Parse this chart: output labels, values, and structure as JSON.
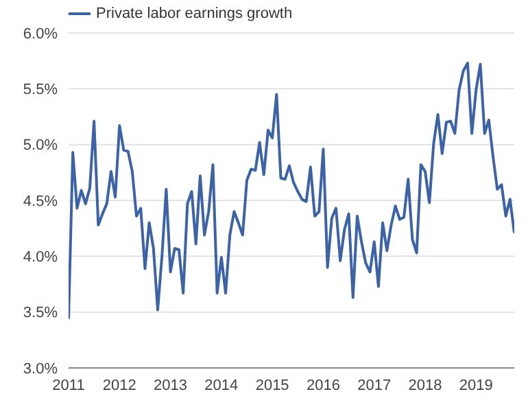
{
  "chart_data": {
    "type": "line",
    "legend": "top left",
    "grid": "y",
    "x": [
      "2011-01",
      "2011-02",
      "2011-03",
      "2011-04",
      "2011-05",
      "2011-06",
      "2011-07",
      "2011-08",
      "2011-09",
      "2011-10",
      "2011-11",
      "2011-12",
      "2012-01",
      "2012-02",
      "2012-03",
      "2012-04",
      "2012-05",
      "2012-06",
      "2012-07",
      "2012-08",
      "2012-09",
      "2012-10",
      "2012-11",
      "2012-12",
      "2013-01",
      "2013-02",
      "2013-03",
      "2013-04",
      "2013-05",
      "2013-06",
      "2013-07",
      "2013-08",
      "2013-09",
      "2013-10",
      "2013-11",
      "2013-12",
      "2014-01",
      "2014-02",
      "2014-03",
      "2014-04",
      "2014-05",
      "2014-06",
      "2014-07",
      "2014-08",
      "2014-09",
      "2014-10",
      "2014-11",
      "2014-12",
      "2015-01",
      "2015-02",
      "2015-03",
      "2015-04",
      "2015-05",
      "2015-06",
      "2015-07",
      "2015-08",
      "2015-09",
      "2015-10",
      "2015-11",
      "2015-12",
      "2016-01",
      "2016-02",
      "2016-03",
      "2016-04",
      "2016-05",
      "2016-06",
      "2016-07",
      "2016-08",
      "2016-09",
      "2016-10",
      "2016-11",
      "2016-12",
      "2017-01",
      "2017-02",
      "2017-03",
      "2017-04",
      "2017-05",
      "2017-06",
      "2017-07",
      "2017-08",
      "2017-09",
      "2017-10",
      "2017-11",
      "2017-12",
      "2018-01",
      "2018-02",
      "2018-03",
      "2018-04",
      "2018-05",
      "2018-06",
      "2018-07",
      "2018-08",
      "2018-09",
      "2018-10",
      "2018-11",
      "2018-12",
      "2019-01",
      "2019-02",
      "2019-03",
      "2019-04",
      "2019-05",
      "2019-06",
      "2019-07",
      "2019-08",
      "2019-09",
      "2019-10"
    ],
    "series": [
      {
        "name": "Private labor earnings growth",
        "color": "#3c63a8",
        "values": [
          3.44,
          4.93,
          4.43,
          4.59,
          4.47,
          4.61,
          5.21,
          4.28,
          4.38,
          4.47,
          4.76,
          4.53,
          5.17,
          4.95,
          4.94,
          4.76,
          4.36,
          4.43,
          3.89,
          4.3,
          4.07,
          3.52,
          4.0,
          4.6,
          3.86,
          4.07,
          4.06,
          3.67,
          4.47,
          4.58,
          4.11,
          4.72,
          4.19,
          4.4,
          4.82,
          3.67,
          3.99,
          3.67,
          4.19,
          4.4,
          4.3,
          4.19,
          4.68,
          4.78,
          4.77,
          5.02,
          4.73,
          5.13,
          5.06,
          5.45,
          4.7,
          4.69,
          4.81,
          4.66,
          4.58,
          4.51,
          4.49,
          4.8,
          4.36,
          4.4,
          4.96,
          3.9,
          4.34,
          4.43,
          3.96,
          4.24,
          4.38,
          3.63,
          4.36,
          4.13,
          3.94,
          3.86,
          4.13,
          3.73,
          4.3,
          4.05,
          4.28,
          4.45,
          4.33,
          4.35,
          4.69,
          4.15,
          4.03,
          4.82,
          4.76,
          4.48,
          5.01,
          5.27,
          4.92,
          5.2,
          5.21,
          5.1,
          5.49,
          5.66,
          5.73,
          5.1,
          5.49,
          5.72,
          5.1,
          5.22,
          4.89,
          4.6,
          4.64,
          4.36,
          4.51,
          4.21
        ]
      }
    ],
    "xlim": [
      "2011-01",
      "2019-10"
    ],
    "xticks": [
      "2011",
      "2012",
      "2013",
      "2014",
      "2015",
      "2016",
      "2017",
      "2018",
      "2019"
    ],
    "ylim": [
      3,
      6
    ],
    "yticks": [
      {
        "value": 3,
        "label": "3.0%"
      },
      {
        "value": 3.5,
        "label": "3.5%"
      },
      {
        "value": 4,
        "label": "4.0%"
      },
      {
        "value": 4.5,
        "label": "4.5%"
      },
      {
        "value": 5,
        "label": "5.0%"
      },
      {
        "value": 5.5,
        "label": "5.5%"
      },
      {
        "value": 6,
        "label": "6.0%"
      }
    ]
  }
}
